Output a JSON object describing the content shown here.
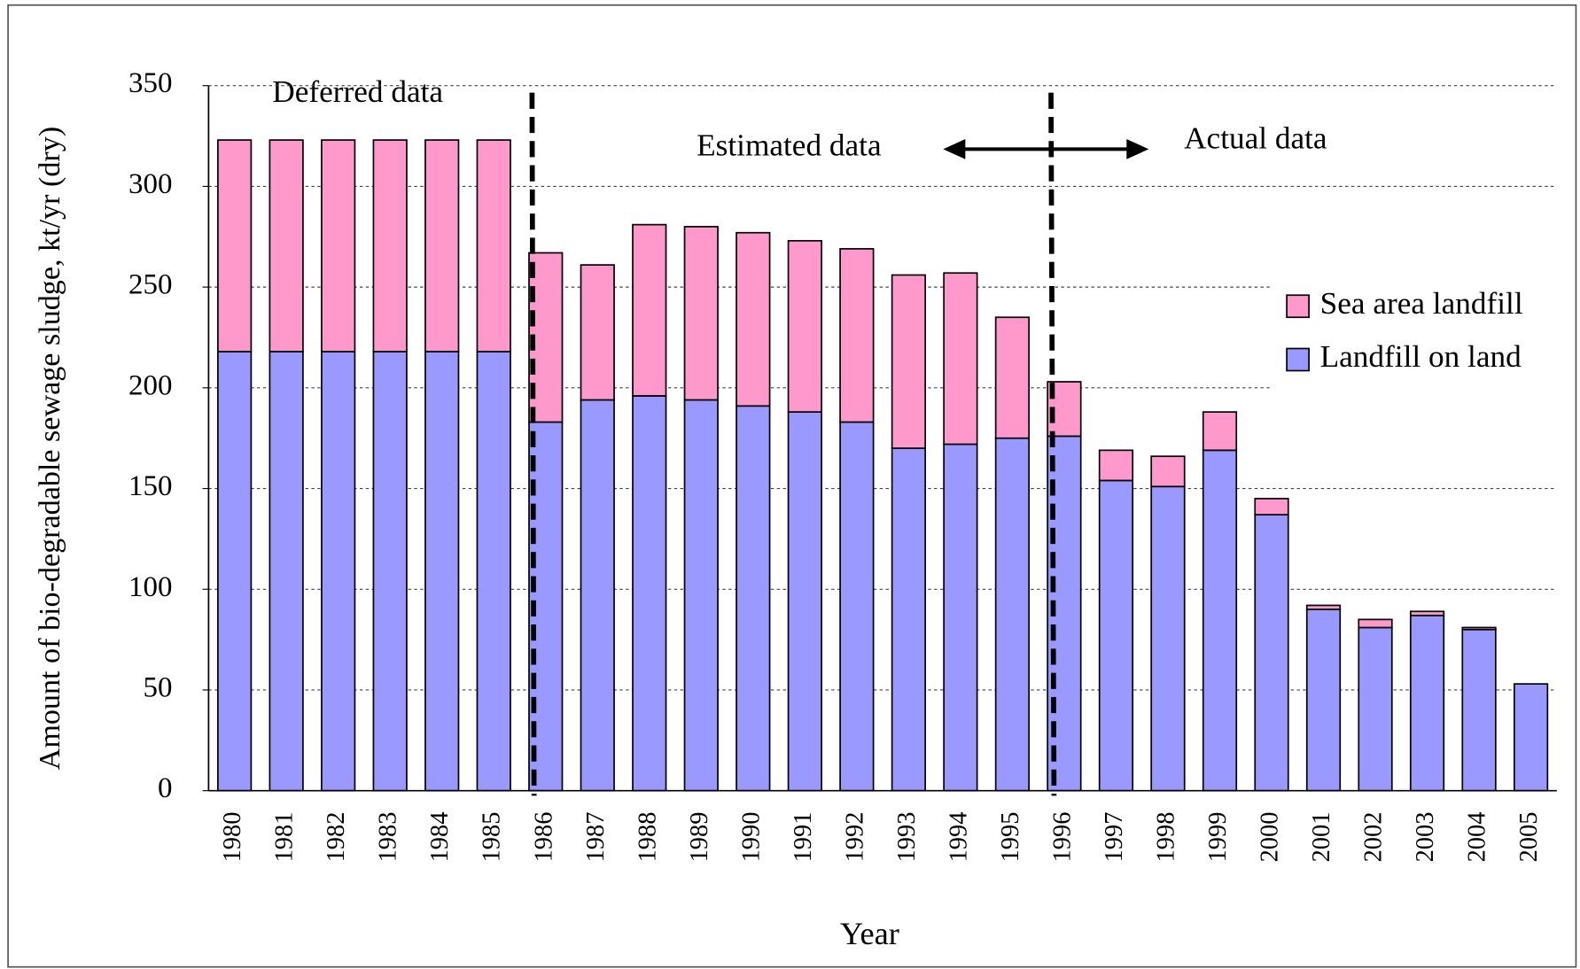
{
  "chart_data": {
    "type": "stacked-bar",
    "x_label": "Year",
    "y_label": "Amount of bio-degradable sewage sludge, kt/yr (dry)",
    "annotations": [
      "Deferred data",
      "Estimated data",
      "Actual data"
    ],
    "categories": [
      "1980",
      "1981",
      "1982",
      "1983",
      "1984",
      "1985",
      "1986",
      "1987",
      "1988",
      "1989",
      "1990",
      "1991",
      "1992",
      "1993",
      "1994",
      "1995",
      "1996",
      "1997",
      "1998",
      "1999",
      "2000",
      "2001",
      "2002",
      "2003",
      "2004",
      "2005"
    ],
    "series": [
      {
        "name": "Landfill on land",
        "color": "#9999ff",
        "values": [
          218,
          218,
          218,
          218,
          218,
          218,
          183,
          194,
          196,
          194,
          191,
          188,
          183,
          170,
          172,
          175,
          176,
          154,
          151,
          169,
          137,
          90,
          81,
          87,
          80,
          53
        ]
      },
      {
        "name": "Sea area landfill",
        "color": "#ff99cc",
        "values": [
          105,
          105,
          105,
          105,
          105,
          105,
          84,
          67,
          85,
          86,
          86,
          85,
          86,
          86,
          85,
          60,
          27,
          15,
          15,
          19,
          8,
          2,
          4,
          2,
          1,
          0
        ]
      }
    ],
    "ylim": [
      0,
      350
    ],
    "yticks": [
      0,
      50,
      100,
      150,
      200,
      250,
      300,
      350
    ],
    "grid": true
  }
}
